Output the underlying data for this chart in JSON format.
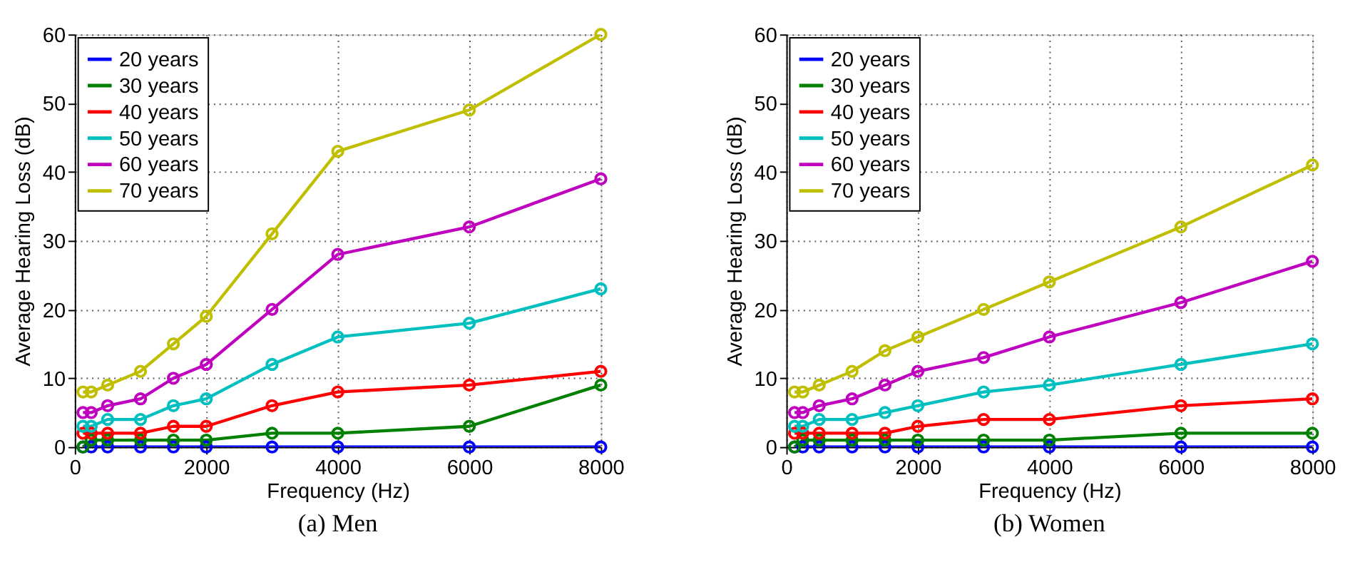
{
  "chart_data": [
    {
      "type": "line",
      "title": "(a) Men",
      "xlabel": "Frequency (Hz)",
      "ylabel": "Average Hearing Loss (dB)",
      "x": [
        125,
        250,
        500,
        1000,
        1500,
        2000,
        3000,
        4000,
        6000,
        8000
      ],
      "xlim": [
        0,
        8000
      ],
      "xticks": [
        0,
        2000,
        4000,
        6000,
        8000
      ],
      "ylim": [
        0,
        60
      ],
      "yticks": [
        0,
        10,
        20,
        30,
        40,
        50,
        60
      ],
      "grid": true,
      "legend": "top left",
      "marker": "circle",
      "line_style": "solid",
      "series": [
        {
          "name": "20 years",
          "color": "#0000ff",
          "values": [
            0,
            0,
            0,
            0,
            0,
            0,
            0,
            0,
            0,
            0
          ]
        },
        {
          "name": "30 years",
          "color": "#008000",
          "values": [
            0,
            1,
            1,
            1,
            1,
            1,
            2,
            2,
            3,
            9
          ]
        },
        {
          "name": "40 years",
          "color": "#ff0000",
          "values": [
            2,
            2,
            2,
            2,
            3,
            3,
            6,
            8,
            9,
            11
          ]
        },
        {
          "name": "50 years",
          "color": "#00bfbf",
          "values": [
            3,
            3,
            4,
            4,
            6,
            7,
            12,
            16,
            18,
            23
          ]
        },
        {
          "name": "60 years",
          "color": "#bf00bf",
          "values": [
            5,
            5,
            6,
            7,
            10,
            12,
            20,
            28,
            32,
            39
          ]
        },
        {
          "name": "70 years",
          "color": "#bfbf00",
          "values": [
            8,
            8,
            9,
            11,
            15,
            19,
            31,
            43,
            49,
            60
          ]
        }
      ]
    },
    {
      "type": "line",
      "title": "(b) Women",
      "xlabel": "Frequency (Hz)",
      "ylabel": "Average Hearing Loss (dB)",
      "x": [
        125,
        250,
        500,
        1000,
        1500,
        2000,
        3000,
        4000,
        6000,
        8000
      ],
      "xlim": [
        0,
        8000
      ],
      "xticks": [
        0,
        2000,
        4000,
        6000,
        8000
      ],
      "ylim": [
        0,
        60
      ],
      "yticks": [
        0,
        10,
        20,
        30,
        40,
        50,
        60
      ],
      "grid": true,
      "legend": "top left",
      "marker": "circle",
      "line_style": "solid",
      "series": [
        {
          "name": "20 years",
          "color": "#0000ff",
          "values": [
            0,
            0,
            0,
            0,
            0,
            0,
            0,
            0,
            0,
            0
          ]
        },
        {
          "name": "30 years",
          "color": "#008000",
          "values": [
            0,
            1,
            1,
            1,
            1,
            1,
            1,
            1,
            2,
            2
          ]
        },
        {
          "name": "40 years",
          "color": "#ff0000",
          "values": [
            2,
            2,
            2,
            2,
            2,
            3,
            4,
            4,
            6,
            7
          ]
        },
        {
          "name": "50 years",
          "color": "#00bfbf",
          "values": [
            3,
            3,
            4,
            4,
            5,
            6,
            8,
            9,
            12,
            15
          ]
        },
        {
          "name": "60 years",
          "color": "#bf00bf",
          "values": [
            5,
            5,
            6,
            7,
            9,
            11,
            13,
            16,
            21,
            27
          ]
        },
        {
          "name": "70 years",
          "color": "#bfbf00",
          "values": [
            8,
            8,
            9,
            11,
            14,
            16,
            20,
            24,
            32,
            41
          ]
        }
      ]
    }
  ]
}
